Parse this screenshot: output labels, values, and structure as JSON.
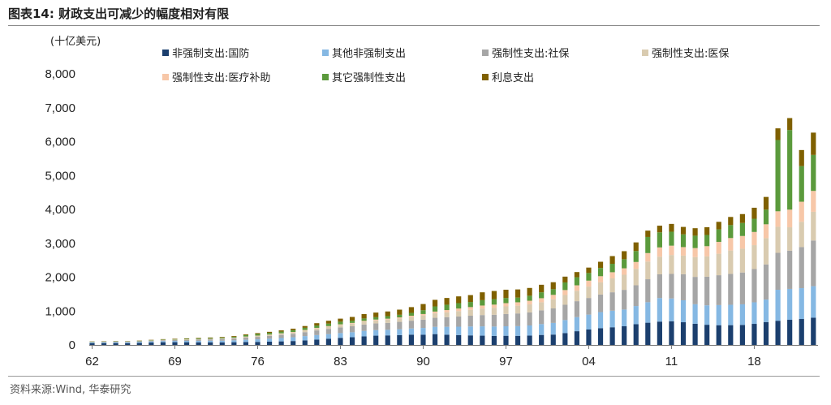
{
  "figure": {
    "title": "图表14:  财政支出可减少的幅度相对有限",
    "source": "资料来源:Wind, 华泰研究"
  },
  "chart_data": {
    "type": "bar",
    "stacked": true,
    "unit_label": "(十亿美元)",
    "ylim": [
      0,
      8000
    ],
    "yticks": [
      0,
      1000,
      2000,
      3000,
      4000,
      5000,
      6000,
      7000,
      8000
    ],
    "ytick_labels": [
      "0",
      "1,000",
      "2,000",
      "3,000",
      "4,000",
      "5,000",
      "6,000",
      "7,000",
      "8,000"
    ],
    "x_tick_labels": [
      "62",
      "69",
      "76",
      "83",
      "90",
      "97",
      "04",
      "11",
      "18"
    ],
    "legend_position": "top",
    "categories": [
      "1962",
      "1963",
      "1964",
      "1965",
      "1966",
      "1967",
      "1968",
      "1969",
      "1970",
      "1971",
      "1972",
      "1973",
      "1974",
      "1975",
      "1976",
      "1977",
      "1978",
      "1979",
      "1980",
      "1981",
      "1982",
      "1983",
      "1984",
      "1985",
      "1986",
      "1987",
      "1988",
      "1989",
      "1990",
      "1991",
      "1992",
      "1993",
      "1994",
      "1995",
      "1996",
      "1997",
      "1998",
      "1999",
      "2000",
      "2001",
      "2002",
      "2003",
      "2004",
      "2005",
      "2006",
      "2007",
      "2008",
      "2009",
      "2010",
      "2011",
      "2012",
      "2013",
      "2014",
      "2015",
      "2016",
      "2017",
      "2018",
      "2019",
      "2020",
      "2021",
      "2022",
      "2023"
    ],
    "series": [
      {
        "name": "非强制支出:国防",
        "color": "#1b3f6e",
        "values": [
          53,
          54,
          55,
          51,
          59,
          71,
          81,
          82,
          81,
          79,
          79,
          77,
          81,
          86,
          90,
          97,
          105,
          116,
          134,
          158,
          185,
          210,
          227,
          253,
          274,
          282,
          290,
          304,
          300,
          320,
          303,
          292,
          282,
          274,
          266,
          271,
          269,
          275,
          295,
          306,
          349,
          405,
          455,
          495,
          522,
          551,
          612,
          656,
          689,
          699,
          670,
          626,
          596,
          583,
          584,
          590,
          622,
          676,
          714,
          742,
          766,
          805
        ]
      },
      {
        "name": "其他非强制支出",
        "color": "#85b8e3",
        "values": [
          22,
          24,
          26,
          27,
          29,
          31,
          34,
          36,
          38,
          42,
          46,
          49,
          55,
          66,
          76,
          87,
          99,
          110,
          127,
          133,
          135,
          140,
          148,
          162,
          164,
          165,
          174,
          182,
          201,
          214,
          232,
          247,
          263,
          275,
          277,
          280,
          285,
          300,
          320,
          343,
          385,
          415,
          440,
          474,
          488,
          494,
          536,
          605,
          695,
          672,
          648,
          575,
          573,
          593,
          601,
          609,
          636,
          663,
          914,
          912,
          910,
          929
        ]
      },
      {
        "name": "强制性支出:社保",
        "color": "#a6a6a6",
        "values": [
          14,
          16,
          17,
          17,
          20,
          21,
          23,
          27,
          30,
          35,
          39,
          48,
          55,
          63,
          72,
          83,
          92,
          102,
          117,
          137,
          154,
          168,
          176,
          186,
          196,
          205,
          217,
          230,
          246,
          267,
          285,
          302,
          317,
          333,
          347,
          362,
          376,
          385,
          406,
          429,
          452,
          471,
          491,
          518,
          544,
          581,
          612,
          678,
          701,
          725,
          768,
          808,
          845,
          882,
          910,
          939,
          982,
          1038,
          1090,
          1129,
          1212,
          1348
        ]
      },
      {
        "name": "强制性支出:医保",
        "color": "#d9cbb0",
        "values": [
          0,
          0,
          0,
          1,
          2,
          6,
          9,
          12,
          13,
          14,
          15,
          17,
          20,
          25,
          29,
          33,
          37,
          42,
          51,
          59,
          65,
          71,
          79,
          86,
          90,
          96,
          101,
          111,
          124,
          131,
          141,
          158,
          173,
          192,
          208,
          225,
          228,
          237,
          240,
          271,
          287,
          308,
          336,
          360,
          411,
          446,
          487,
          521,
          520,
          559,
          551,
          585,
          600,
          634,
          692,
          702,
          705,
          775,
          769,
          689,
          747,
          848
        ]
      },
      {
        "name": "强制性支出:医疗补助",
        "color": "#f7c7a8",
        "values": [
          0,
          0,
          0,
          0,
          1,
          2,
          2,
          2,
          3,
          3,
          4,
          4,
          5,
          7,
          8,
          9,
          11,
          13,
          14,
          17,
          17,
          19,
          20,
          23,
          25,
          27,
          31,
          35,
          41,
          53,
          68,
          76,
          82,
          89,
          92,
          96,
          101,
          108,
          118,
          129,
          147,
          161,
          176,
          182,
          181,
          190,
          201,
          251,
          273,
          275,
          251,
          265,
          301,
          350,
          368,
          375,
          389,
          409,
          458,
          521,
          592,
          616
        ]
      },
      {
        "name": "其它强制性支出",
        "color": "#5b9a3c",
        "values": [
          7,
          7,
          7,
          6,
          8,
          10,
          11,
          12,
          15,
          19,
          20,
          21,
          24,
          42,
          47,
          48,
          50,
          54,
          62,
          69,
          73,
          78,
          65,
          72,
          70,
          74,
          77,
          85,
          111,
          152,
          158,
          159,
          151,
          158,
          161,
          152,
          138,
          147,
          174,
          167,
          225,
          238,
          225,
          242,
          249,
          268,
          325,
          476,
          446,
          412,
          375,
          365,
          331,
          368,
          382,
          384,
          390,
          432,
          2102,
          2350,
          1050,
          1062
        ]
      },
      {
        "name": "利息支出",
        "color": "#7f6000",
        "values": [
          7,
          8,
          8,
          9,
          9,
          10,
          11,
          13,
          14,
          15,
          16,
          17,
          21,
          23,
          27,
          30,
          36,
          43,
          53,
          69,
          85,
          90,
          111,
          130,
          136,
          139,
          152,
          169,
          184,
          194,
          199,
          199,
          203,
          232,
          241,
          244,
          241,
          230,
          223,
          206,
          171,
          153,
          160,
          184,
          227,
          237,
          253,
          187,
          196,
          230,
          220,
          221,
          229,
          223,
          240,
          263,
          325,
          375,
          345,
          352,
          475,
          658
        ]
      }
    ]
  }
}
